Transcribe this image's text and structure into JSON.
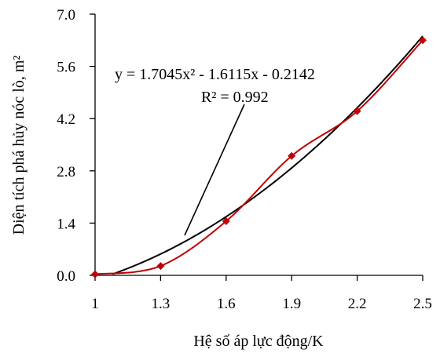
{
  "chart_data": {
    "type": "scatter",
    "title": "",
    "xlabel": "Hệ số áp lực động/K",
    "ylabel": "Diện tích phá hủy nóc lò, m²",
    "xlim": [
      1,
      2.5
    ],
    "ylim": [
      0,
      7
    ],
    "x_ticks": [
      "1",
      "1.3",
      "1.6",
      "1.9",
      "2.2",
      "2.5"
    ],
    "y_ticks": [
      "0.0",
      "1.4",
      "2.8",
      "4.2",
      "5.6",
      "7.0"
    ],
    "grid": false,
    "series": [
      {
        "x": [
          1.0,
          1.3,
          1.6,
          1.9,
          2.2,
          2.5
        ],
        "y": [
          0.03,
          0.25,
          1.45,
          3.2,
          4.4,
          6.3
        ],
        "color": "#c00000",
        "marker": "diamond",
        "line": "smooth"
      }
    ],
    "trendline": {
      "type": "polynomial",
      "coefficients": [
        1.7045,
        -1.6115,
        -0.2142
      ],
      "x_range": [
        1.08,
        2.5
      ],
      "color": "#000000"
    },
    "equation_label": "y = 1.7045x² - 1.6115x - 0.2142",
    "r2_label": "R² = 0.992"
  }
}
